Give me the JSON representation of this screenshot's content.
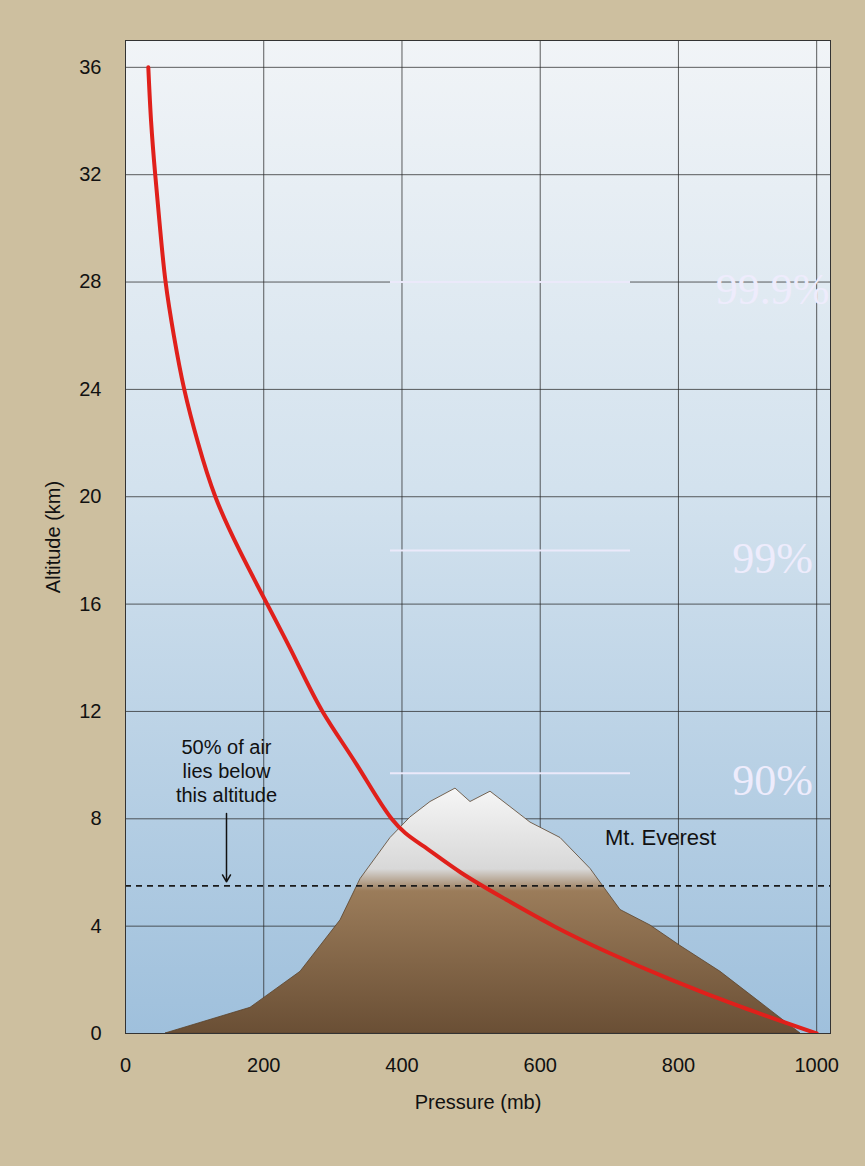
{
  "chart_data": {
    "type": "line",
    "x_label": "Pressure (mb)",
    "y_label": "Altitude (km)",
    "x": [
      1000,
      890,
      790,
      700,
      620,
      550,
      485,
      430,
      385,
      335,
      285,
      245,
      205,
      165,
      130,
      105,
      85,
      70,
      58,
      50,
      43,
      37,
      33
    ],
    "values": [
      0,
      1,
      2,
      3,
      4,
      5,
      6,
      7,
      8,
      10,
      12,
      14,
      16,
      18,
      20,
      22,
      24,
      26,
      28,
      30,
      32,
      34,
      36
    ],
    "color": "#e0201b",
    "xlim": [
      0,
      1020
    ],
    "ylim": [
      0,
      37
    ],
    "xticks": [
      0,
      200,
      400,
      600,
      800,
      1000
    ],
    "yticks": [
      0,
      4,
      8,
      12,
      16,
      20,
      24,
      28,
      32,
      36
    ],
    "grid": true,
    "annotations": [
      {
        "text": "50% of air\nlies below\nthis altitude",
        "altitude": 5.5
      },
      {
        "text": "Mt. Everest"
      }
    ],
    "levels": [
      {
        "label": "90%",
        "altitude": 9.7
      },
      {
        "label": "99%",
        "altitude": 18
      },
      {
        "label": "99.9%",
        "altitude": 28
      }
    ]
  }
}
